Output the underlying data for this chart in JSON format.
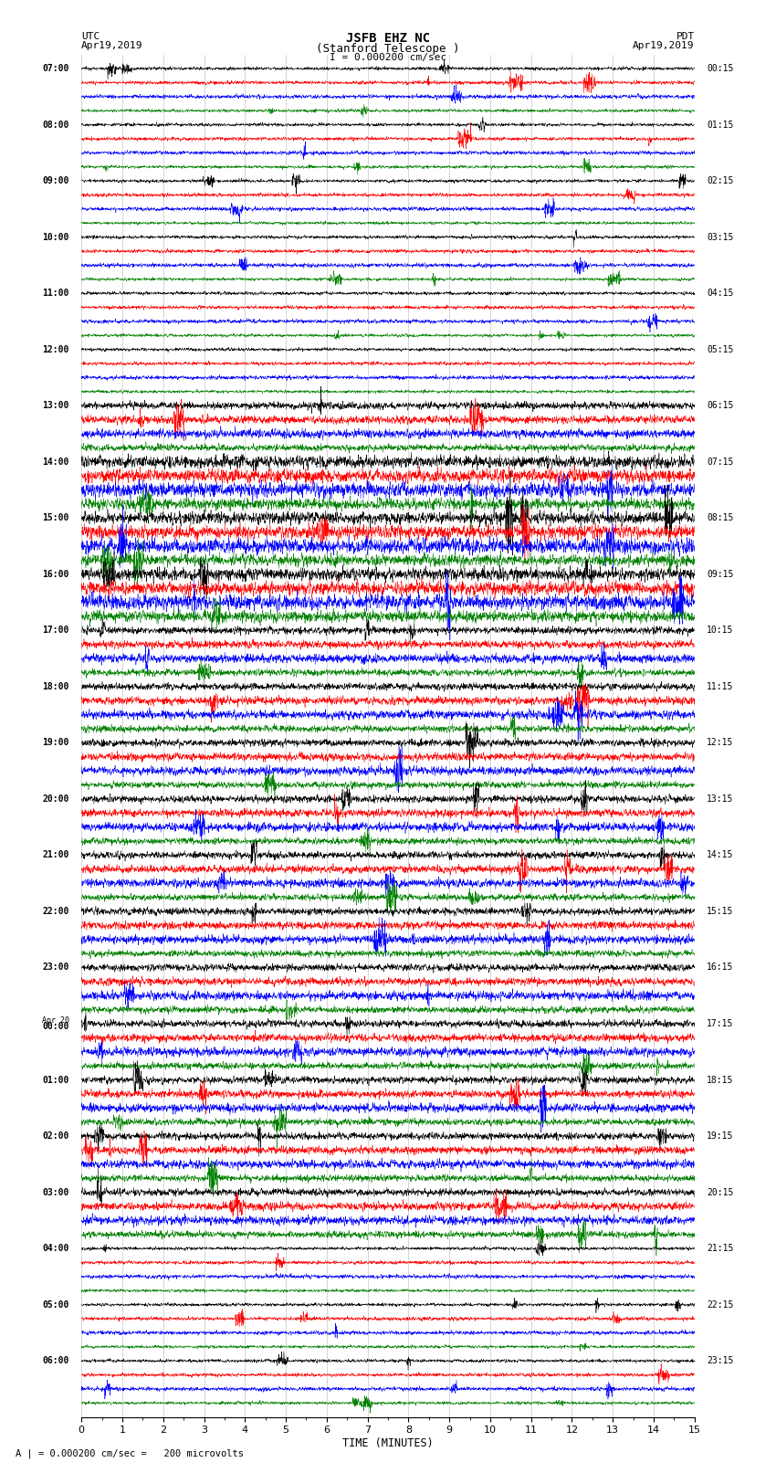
{
  "title_line1": "JSFB EHZ NC",
  "title_line2": "(Stanford Telescope )",
  "scale_label": "I = 0.000200 cm/sec",
  "utc_label": "UTC",
  "utc_date": "Apr19,2019",
  "pdt_label": "PDT",
  "pdt_date": "Apr19,2019",
  "bottom_label": "A | = 0.000200 cm/sec =   200 microvolts",
  "xlabel": "TIME (MINUTES)",
  "left_times": [
    "07:00",
    "08:00",
    "09:00",
    "10:00",
    "11:00",
    "12:00",
    "13:00",
    "14:00",
    "15:00",
    "16:00",
    "17:00",
    "18:00",
    "19:00",
    "20:00",
    "21:00",
    "22:00",
    "23:00",
    "Apr 20\n00:00",
    "01:00",
    "02:00",
    "03:00",
    "04:00",
    "05:00",
    "06:00"
  ],
  "right_times": [
    "00:15",
    "01:15",
    "02:15",
    "03:15",
    "04:15",
    "05:15",
    "06:15",
    "07:15",
    "08:15",
    "09:15",
    "10:15",
    "11:15",
    "12:15",
    "13:15",
    "14:15",
    "15:15",
    "16:15",
    "17:15",
    "18:15",
    "19:15",
    "20:15",
    "21:15",
    "22:15",
    "23:15"
  ],
  "colors": [
    "black",
    "red",
    "blue",
    "green"
  ],
  "n_traces": 96,
  "n_points": 2700,
  "fig_width": 8.5,
  "fig_height": 16.13,
  "bg_color": "white",
  "xlim": [
    0,
    15
  ],
  "xticks": [
    0,
    1,
    2,
    3,
    4,
    5,
    6,
    7,
    8,
    9,
    10,
    11,
    12,
    13,
    14,
    15
  ],
  "vline_color": "#999999",
  "n_hours": 24,
  "traces_per_hour": 4,
  "amp_quiet": 0.1,
  "amp_moderate": 0.22,
  "amp_active": 0.38,
  "amp_very_active": 0.5,
  "active_hours": [
    7,
    8,
    9
  ],
  "moderate_hours": [
    6,
    10,
    11,
    12,
    13,
    14,
    15,
    16,
    17,
    18,
    19,
    20
  ],
  "very_active_hours": []
}
